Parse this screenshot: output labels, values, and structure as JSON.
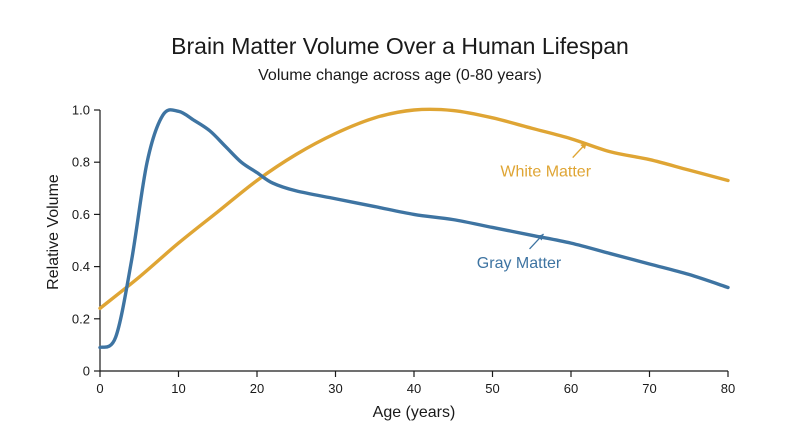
{
  "chart_data": {
    "type": "line",
    "title": "Brain Matter Volume Over a Human Lifespan",
    "subtitle": "Volume change across age (0-80 years)",
    "xlabel": "Age (years)",
    "ylabel": "Relative Volume",
    "xlim": [
      0,
      80
    ],
    "ylim": [
      0,
      1.0
    ],
    "xticks": [
      "0",
      "10",
      "20",
      "30",
      "40",
      "50",
      "60",
      "70",
      "80"
    ],
    "yticks": [
      "0",
      "0.2",
      "0.4",
      "0.6",
      "0.8",
      "1.0"
    ],
    "grid": false,
    "series": [
      {
        "name": "White Matter",
        "color": "#dfa534",
        "x": [
          0,
          5,
          10,
          15,
          20,
          25,
          30,
          35,
          40,
          45,
          50,
          55,
          60,
          65,
          70,
          75,
          80
        ],
        "y": [
          0.24,
          0.36,
          0.49,
          0.61,
          0.73,
          0.83,
          0.91,
          0.97,
          1.0,
          0.998,
          0.97,
          0.93,
          0.89,
          0.84,
          0.81,
          0.77,
          0.73
        ]
      },
      {
        "name": "Gray Matter",
        "color": "#3e74a2",
        "x": [
          0,
          2,
          4,
          6,
          8,
          10,
          12,
          14,
          16,
          18,
          20,
          22,
          25,
          30,
          35,
          40,
          45,
          50,
          55,
          60,
          65,
          70,
          75,
          80
        ],
        "y": [
          0.09,
          0.13,
          0.42,
          0.8,
          0.98,
          0.995,
          0.96,
          0.92,
          0.86,
          0.8,
          0.76,
          0.72,
          0.69,
          0.66,
          0.63,
          0.6,
          0.58,
          0.55,
          0.52,
          0.49,
          0.45,
          0.41,
          0.37,
          0.32
        ]
      }
    ],
    "annotations": [
      {
        "series": "White Matter",
        "text": "White Matter",
        "text_x": 51,
        "text_y": 0.745,
        "point_x": 62,
        "point_y": 0.875
      },
      {
        "series": "Gray Matter",
        "text": "Gray Matter",
        "text_x": 48,
        "text_y": 0.395,
        "point_x": 56.5,
        "point_y": 0.525
      }
    ]
  }
}
